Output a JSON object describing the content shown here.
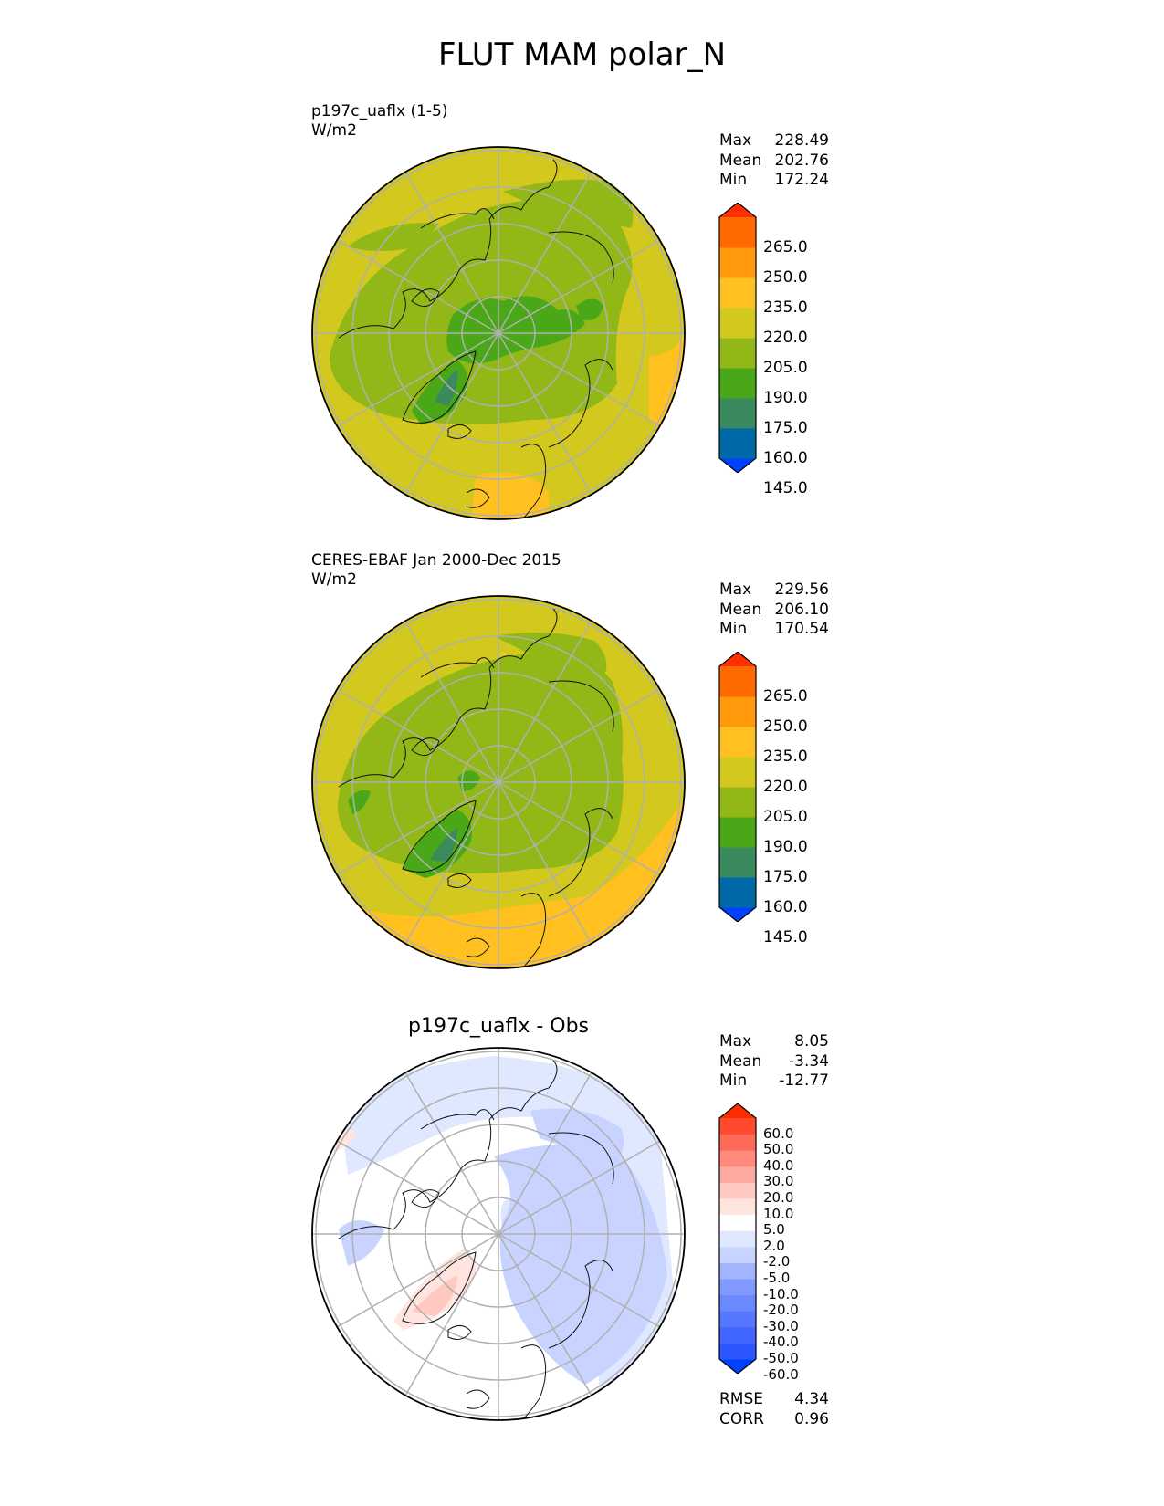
{
  "title": "FLUT MAM polar_N",
  "panels": [
    {
      "id": "test",
      "title": "p197c_uaflx (1-5)",
      "units": "W/m2",
      "stats": [
        {
          "label": "Max",
          "value": "228.49"
        },
        {
          "label": "Mean",
          "value": "202.76"
        },
        {
          "label": "Min",
          "value": "172.24"
        }
      ],
      "colorbar": {
        "ticks": [
          "265.0",
          "250.0",
          "235.0",
          "220.0",
          "205.0",
          "190.0",
          "175.0",
          "160.0",
          "145.0"
        ],
        "colors": [
          "#0040ff",
          "#006aa8",
          "#3a8a5e",
          "#4aa818",
          "#92b818",
          "#d2c81e",
          "#ffc020",
          "#ff9a0c",
          "#ff6a00",
          "#ff2e00"
        ]
      }
    },
    {
      "id": "ref",
      "title": "CERES-EBAF Jan 2000-Dec 2015",
      "units": "W/m2",
      "stats": [
        {
          "label": "Max",
          "value": "229.56"
        },
        {
          "label": "Mean",
          "value": "206.10"
        },
        {
          "label": "Min",
          "value": "170.54"
        }
      ],
      "colorbar": {
        "ticks": [
          "265.0",
          "250.0",
          "235.0",
          "220.0",
          "205.0",
          "190.0",
          "175.0",
          "160.0",
          "145.0"
        ],
        "colors": [
          "#0040ff",
          "#006aa8",
          "#3a8a5e",
          "#4aa818",
          "#92b818",
          "#d2c81e",
          "#ffc020",
          "#ff9a0c",
          "#ff6a00",
          "#ff2e00"
        ]
      }
    },
    {
      "id": "diff",
      "title": "p197c_uaflx - Obs",
      "units": "",
      "stats": [
        {
          "label": "Max",
          "value": "8.05"
        },
        {
          "label": "Mean",
          "value": "-3.34"
        },
        {
          "label": "Min",
          "value": "-12.77"
        }
      ],
      "colorbar": {
        "ticks": [
          "60.0",
          "50.0",
          "40.0",
          "30.0",
          "20.0",
          "10.0",
          "5.0",
          "2.0",
          "-2.0",
          "-5.0",
          "-10.0",
          "-20.0",
          "-30.0",
          "-40.0",
          "-50.0",
          "-60.0"
        ],
        "colors": [
          "#0040ff",
          "#2a55ff",
          "#4066ff",
          "#5577ff",
          "#6a88ff",
          "#8099ff",
          "#a0b4ff",
          "#c8d4ff",
          "#e0e8ff",
          "#ffffff",
          "#ffe4e0",
          "#ffc8c0",
          "#ffaaa0",
          "#ff8a7c",
          "#ff6a58",
          "#ff4a30",
          "#ff2e00"
        ]
      },
      "extra_stats": [
        {
          "label": "RMSE",
          "value": "4.34"
        },
        {
          "label": "CORR",
          "value": "0.96"
        }
      ]
    }
  ]
}
